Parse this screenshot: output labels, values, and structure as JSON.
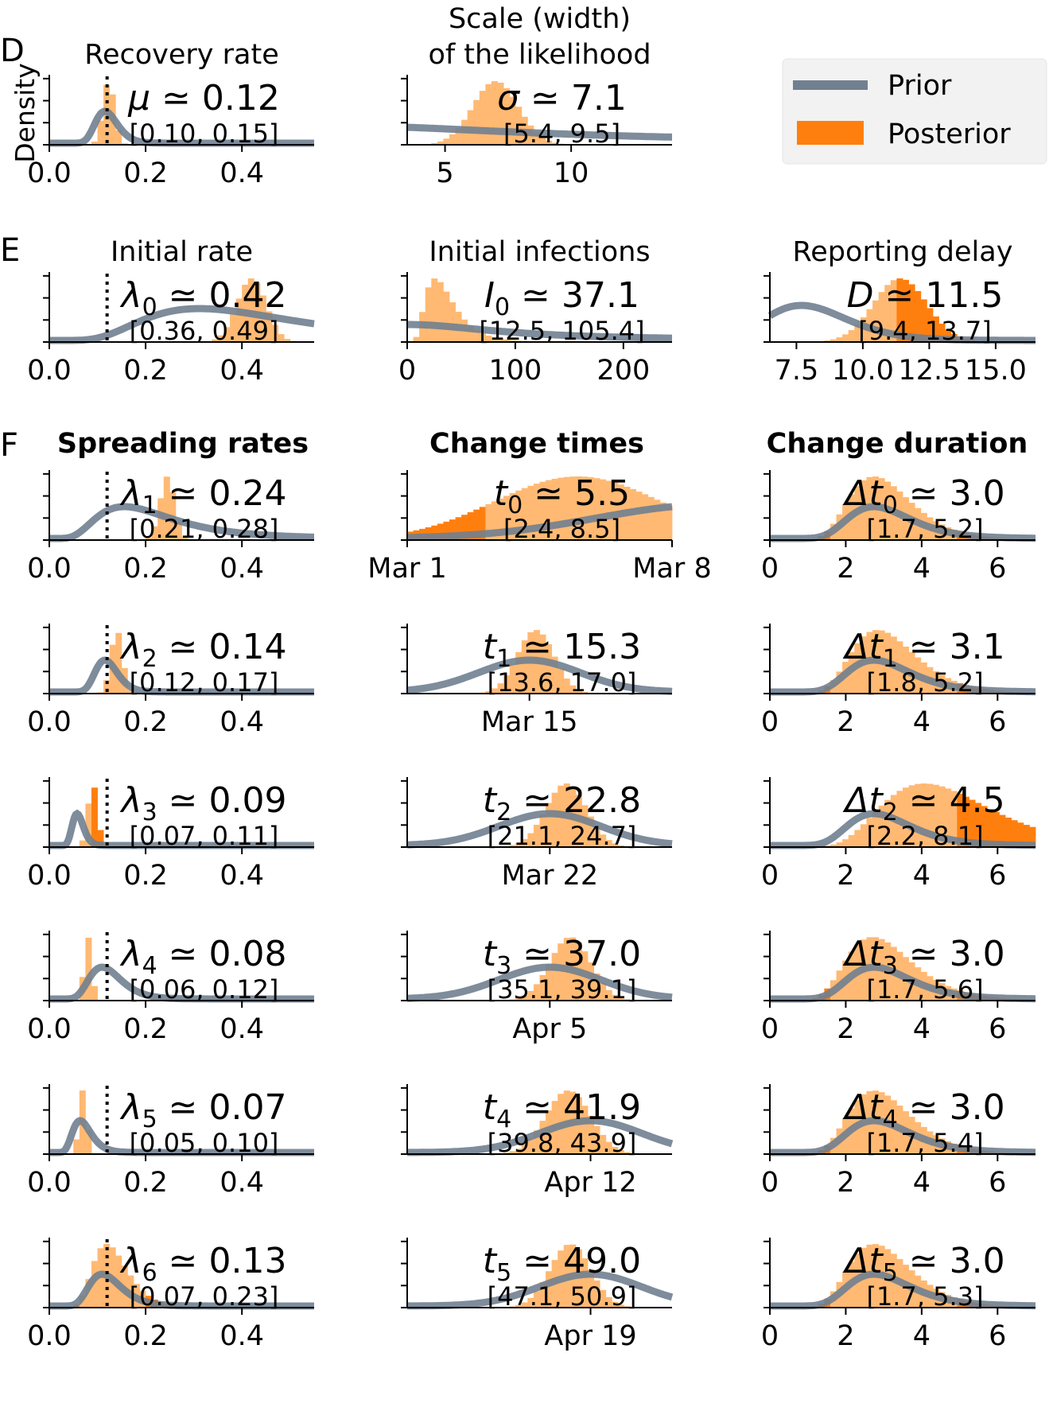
{
  "figure": {
    "density_label": "Density",
    "legend": {
      "prior_label": "Prior",
      "posterior_label": "Posterior",
      "prior_color": "#708090",
      "posterior_color": "#ff7f0e",
      "posterior_light_color": "#ffb973"
    },
    "panel_letters": [
      "D",
      "E",
      "F"
    ],
    "section_titles": {
      "spreading": "Spreading rates",
      "change_times": "Change times",
      "change_duration": "Change duration"
    }
  },
  "chart_data": [
    {
      "id": "mu",
      "type": "histogram",
      "title": [
        "Recovery rate"
      ],
      "symbol": "μ",
      "sub": "",
      "value": "0.12",
      "ci": "[0.10, 0.15]",
      "xlim": [
        0,
        0.55
      ],
      "ticks": [
        {
          "v": 0,
          "l": "0.0"
        },
        {
          "v": 0.2,
          "l": "0.2"
        },
        {
          "v": 0.4,
          "l": "0.4"
        }
      ],
      "marker": 0.12,
      "prior": {
        "type": "lognormal",
        "median": 0.12,
        "sigma": 0.2
      },
      "posterior": {
        "mean": 0.123,
        "sd": 0.012
      }
    },
    {
      "id": "sigma",
      "type": "histogram",
      "title": [
        "Scale (width)",
        "of the likelihood"
      ],
      "symbol": "σ",
      "sub": "",
      "value": "7.1",
      "ci": "[5.4, 9.5]",
      "xlim": [
        3.5,
        14
      ],
      "ticks": [
        {
          "v": 5,
          "l": "5"
        },
        {
          "v": 10,
          "l": "10"
        }
      ],
      "prior": {
        "type": "halfcauchy",
        "scale": 10
      },
      "posterior": {
        "mean": 7.0,
        "sd": 0.9
      }
    },
    {
      "id": "lambda0",
      "type": "histogram",
      "title": [
        "Initial rate"
      ],
      "symbol": "λ",
      "sub": "0",
      "value": "0.42",
      "ci": "[0.36, 0.49]",
      "xlim": [
        0,
        0.55
      ],
      "ticks": [
        {
          "v": 0,
          "l": "0.0"
        },
        {
          "v": 0.2,
          "l": "0.2"
        },
        {
          "v": 0.4,
          "l": "0.4"
        }
      ],
      "marker": 0.12,
      "prior": {
        "type": "lognormal",
        "median": 0.4,
        "sigma": 0.5
      },
      "posterior": {
        "mean": 0.42,
        "sd": 0.03
      }
    },
    {
      "id": "I0",
      "type": "histogram",
      "title": [
        "Initial infections"
      ],
      "symbol": "I",
      "sub": "0",
      "value": "37.1",
      "ci": "[12.5, 105.4]",
      "xlim": [
        0,
        245
      ],
      "ticks": [
        {
          "v": 0,
          "l": "0"
        },
        {
          "v": 100,
          "l": "100"
        },
        {
          "v": 200,
          "l": "200"
        }
      ],
      "prior": {
        "type": "halfcauchy",
        "scale": 100
      },
      "posterior": {
        "type": "lognormal",
        "median": 33,
        "sigma": 0.5
      }
    },
    {
      "id": "D",
      "type": "histogram",
      "title": [
        "Reporting delay"
      ],
      "symbol": "D",
      "sub": "",
      "value": "11.5",
      "ci": "[9.4, 13.7]",
      "xlim": [
        6.5,
        16.5
      ],
      "ticks": [
        {
          "v": 7.5,
          "l": "7.5"
        },
        {
          "v": 10,
          "l": "10.0"
        },
        {
          "v": 12.5,
          "l": "12.5"
        },
        {
          "v": 15,
          "l": "15.0"
        }
      ],
      "prior": {
        "type": "lognormal",
        "median": 8,
        "sigma": 0.2
      },
      "posterior": {
        "mean": 11.4,
        "sd": 1.0
      }
    },
    {
      "id": "lambda1",
      "type": "histogram",
      "title": [],
      "symbol": "λ",
      "sub": "1",
      "value": "0.24",
      "ci": "[0.21, 0.28]",
      "xlim": [
        0,
        0.55
      ],
      "ticks": [
        {
          "v": 0,
          "l": "0.0"
        },
        {
          "v": 0.2,
          "l": "0.2"
        },
        {
          "v": 0.4,
          "l": "0.4"
        }
      ],
      "marker": 0.12,
      "prior": {
        "type": "lognormal",
        "median": 0.2,
        "sigma": 0.5
      },
      "posterior": {
        "mean": 0.245,
        "sd": 0.015
      }
    },
    {
      "id": "t0",
      "type": "histogram",
      "title": [],
      "symbol": "t",
      "sub": "0",
      "value": "5.5",
      "ci": "[2.4, 8.5]",
      "xlim": [
        1,
        8
      ],
      "ticks": [
        {
          "v": 1,
          "l": "Mar 1"
        },
        {
          "v": 8,
          "l": "Mar 8"
        }
      ],
      "prior": {
        "type": "normal",
        "mean": 9,
        "sd": 3
      },
      "posterior": {
        "mean": 5.5,
        "sd": 2.2
      }
    },
    {
      "id": "dt0",
      "type": "histogram",
      "title": [],
      "symbol": "Δt",
      "sub": "0",
      "value": "3.0",
      "ci": "[1.7, 5.2]",
      "xlim": [
        0,
        7
      ],
      "ticks": [
        {
          "v": 0,
          "l": "0"
        },
        {
          "v": 2,
          "l": "2"
        },
        {
          "v": 4,
          "l": "4"
        },
        {
          "v": 6,
          "l": "6"
        }
      ],
      "prior": {
        "type": "lognormal",
        "median": 3,
        "sigma": 0.3
      },
      "posterior": {
        "type": "lognormal",
        "median": 3,
        "sigma": 0.3
      }
    },
    {
      "id": "lambda2",
      "type": "histogram",
      "title": [],
      "symbol": "λ",
      "sub": "2",
      "value": "0.14",
      "ci": "[0.12, 0.17]",
      "xlim": [
        0,
        0.55
      ],
      "ticks": [
        {
          "v": 0,
          "l": "0.0"
        },
        {
          "v": 0.2,
          "l": "0.2"
        },
        {
          "v": 0.4,
          "l": "0.4"
        }
      ],
      "marker": 0.12,
      "prior": {
        "type": "lognormal",
        "median": 0.12,
        "sigma": 0.2
      },
      "posterior": {
        "mean": 0.14,
        "sd": 0.012
      }
    },
    {
      "id": "t1",
      "type": "histogram",
      "title": [],
      "symbol": "t",
      "sub": "1",
      "value": "15.3",
      "ci": "[13.6, 17.0]",
      "xlim": [
        9,
        22
      ],
      "ticks": [
        {
          "v": 15,
          "l": "Mar 15"
        }
      ],
      "prior": {
        "type": "normal",
        "mean": 15,
        "sd": 2.5
      },
      "posterior": {
        "mean": 15.3,
        "sd": 0.9
      }
    },
    {
      "id": "dt1",
      "type": "histogram",
      "title": [],
      "symbol": "Δt",
      "sub": "1",
      "value": "3.1",
      "ci": "[1.8, 5.2]",
      "xlim": [
        0,
        7
      ],
      "ticks": [
        {
          "v": 0,
          "l": "0"
        },
        {
          "v": 2,
          "l": "2"
        },
        {
          "v": 4,
          "l": "4"
        },
        {
          "v": 6,
          "l": "6"
        }
      ],
      "prior": {
        "type": "lognormal",
        "median": 3,
        "sigma": 0.3
      },
      "posterior": {
        "type": "lognormal",
        "median": 3.1,
        "sigma": 0.3
      }
    },
    {
      "id": "lambda3",
      "type": "histogram",
      "title": [],
      "symbol": "λ",
      "sub": "3",
      "value": "0.09",
      "ci": "[0.07, 0.11]",
      "xlim": [
        0,
        0.55
      ],
      "ticks": [
        {
          "v": 0,
          "l": "0.0"
        },
        {
          "v": 0.2,
          "l": "0.2"
        },
        {
          "v": 0.4,
          "l": "0.4"
        }
      ],
      "marker": 0.12,
      "prior": {
        "type": "lognormal",
        "median": 0.06,
        "sigma": 0.2
      },
      "posterior": {
        "mean": 0.09,
        "sd": 0.01
      }
    },
    {
      "id": "t2",
      "type": "histogram",
      "title": [],
      "symbol": "t",
      "sub": "2",
      "value": "22.8",
      "ci": "[21.1, 24.7]",
      "xlim": [
        15,
        28
      ],
      "ticks": [
        {
          "v": 22,
          "l": "Mar 22"
        }
      ],
      "prior": {
        "type": "normal",
        "mean": 22,
        "sd": 2.5
      },
      "posterior": {
        "mean": 22.8,
        "sd": 1.0
      }
    },
    {
      "id": "dt2",
      "type": "histogram",
      "title": [],
      "symbol": "Δt",
      "sub": "2",
      "value": "4.5",
      "ci": "[2.2, 8.1]",
      "xlim": [
        0,
        7
      ],
      "ticks": [
        {
          "v": 0,
          "l": "0"
        },
        {
          "v": 2,
          "l": "2"
        },
        {
          "v": 4,
          "l": "4"
        },
        {
          "v": 6,
          "l": "6"
        }
      ],
      "prior": {
        "type": "lognormal",
        "median": 3,
        "sigma": 0.3
      },
      "posterior": {
        "type": "lognormal",
        "median": 4.6,
        "sigma": 0.35
      }
    },
    {
      "id": "lambda4",
      "type": "histogram",
      "title": [],
      "symbol": "λ",
      "sub": "4",
      "value": "0.08",
      "ci": "[0.06, 0.12]",
      "xlim": [
        0,
        0.55
      ],
      "ticks": [
        {
          "v": 0,
          "l": "0.0"
        },
        {
          "v": 0.2,
          "l": "0.2"
        },
        {
          "v": 0.4,
          "l": "0.4"
        }
      ],
      "marker": 0.12,
      "prior": {
        "type": "lognormal",
        "median": 0.12,
        "sigma": 0.3
      },
      "posterior": {
        "mean": 0.08,
        "sd": 0.008
      }
    },
    {
      "id": "t3",
      "type": "histogram",
      "title": [],
      "symbol": "t",
      "sub": "3",
      "value": "37.0",
      "ci": "[35.1, 39.1]",
      "xlim": [
        29,
        42
      ],
      "ticks": [
        {
          "v": 36,
          "l": "Apr 5"
        }
      ],
      "prior": {
        "type": "normal",
        "mean": 36,
        "sd": 2.5
      },
      "posterior": {
        "mean": 37.0,
        "sd": 1.0
      }
    },
    {
      "id": "dt3",
      "type": "histogram",
      "title": [],
      "symbol": "Δt",
      "sub": "3",
      "value": "3.0",
      "ci": "[1.7, 5.6]",
      "xlim": [
        0,
        7
      ],
      "ticks": [
        {
          "v": 0,
          "l": "0"
        },
        {
          "v": 2,
          "l": "2"
        },
        {
          "v": 4,
          "l": "4"
        },
        {
          "v": 6,
          "l": "6"
        }
      ],
      "prior": {
        "type": "lognormal",
        "median": 3,
        "sigma": 0.3
      },
      "posterior": {
        "type": "lognormal",
        "median": 3,
        "sigma": 0.32
      }
    },
    {
      "id": "lambda5",
      "type": "histogram",
      "title": [],
      "symbol": "λ",
      "sub": "5",
      "value": "0.07",
      "ci": "[0.05, 0.10]",
      "xlim": [
        0,
        0.55
      ],
      "ticks": [
        {
          "v": 0,
          "l": "0.0"
        },
        {
          "v": 0.2,
          "l": "0.2"
        },
        {
          "v": 0.4,
          "l": "0.4"
        }
      ],
      "marker": 0.12,
      "prior": {
        "type": "lognormal",
        "median": 0.07,
        "sigma": 0.3
      },
      "posterior": {
        "mean": 0.07,
        "sd": 0.008
      }
    },
    {
      "id": "t4",
      "type": "histogram",
      "title": [],
      "symbol": "t",
      "sub": "4",
      "value": "41.9",
      "ci": "[39.8, 43.9]",
      "xlim": [
        34,
        47
      ],
      "ticks": [
        {
          "v": 43,
          "l": "Apr 12"
        }
      ],
      "prior": {
        "type": "normal",
        "mean": 43,
        "sd": 2.5
      },
      "posterior": {
        "mean": 41.9,
        "sd": 1.1
      }
    },
    {
      "id": "dt4",
      "type": "histogram",
      "title": [],
      "symbol": "Δt",
      "sub": "4",
      "value": "3.0",
      "ci": "[1.7, 5.4]",
      "xlim": [
        0,
        7
      ],
      "ticks": [
        {
          "v": 0,
          "l": "0"
        },
        {
          "v": 2,
          "l": "2"
        },
        {
          "v": 4,
          "l": "4"
        },
        {
          "v": 6,
          "l": "6"
        }
      ],
      "prior": {
        "type": "lognormal",
        "median": 3,
        "sigma": 0.3
      },
      "posterior": {
        "type": "lognormal",
        "median": 3,
        "sigma": 0.3
      }
    },
    {
      "id": "lambda6",
      "type": "histogram",
      "title": [],
      "symbol": "λ",
      "sub": "6",
      "value": "0.13",
      "ci": "[0.07, 0.23]",
      "xlim": [
        0,
        0.55
      ],
      "ticks": [
        {
          "v": 0,
          "l": "0.0"
        },
        {
          "v": 0.2,
          "l": "0.2"
        },
        {
          "v": 0.4,
          "l": "0.4"
        }
      ],
      "marker": 0.12,
      "prior": {
        "type": "lognormal",
        "median": 0.12,
        "sigma": 0.3
      },
      "posterior": {
        "type": "lognormal",
        "median": 0.13,
        "sigma": 0.3
      }
    },
    {
      "id": "t5",
      "type": "histogram",
      "title": [],
      "symbol": "t",
      "sub": "5",
      "value": "49.0",
      "ci": "[47.1, 50.9]",
      "xlim": [
        41,
        54
      ],
      "ticks": [
        {
          "v": 50,
          "l": "Apr 19"
        }
      ],
      "prior": {
        "type": "normal",
        "mean": 50,
        "sd": 2.5
      },
      "posterior": {
        "mean": 49.0,
        "sd": 1.0
      }
    },
    {
      "id": "dt5",
      "type": "histogram",
      "title": [],
      "symbol": "Δt",
      "sub": "5",
      "value": "3.0",
      "ci": "[1.7, 5.3]",
      "xlim": [
        0,
        7
      ],
      "ticks": [
        {
          "v": 0,
          "l": "0"
        },
        {
          "v": 2,
          "l": "2"
        },
        {
          "v": 4,
          "l": "4"
        },
        {
          "v": 6,
          "l": "6"
        }
      ],
      "prior": {
        "type": "lognormal",
        "median": 3,
        "sigma": 0.3
      },
      "posterior": {
        "type": "lognormal",
        "median": 3,
        "sigma": 0.3
      }
    }
  ]
}
